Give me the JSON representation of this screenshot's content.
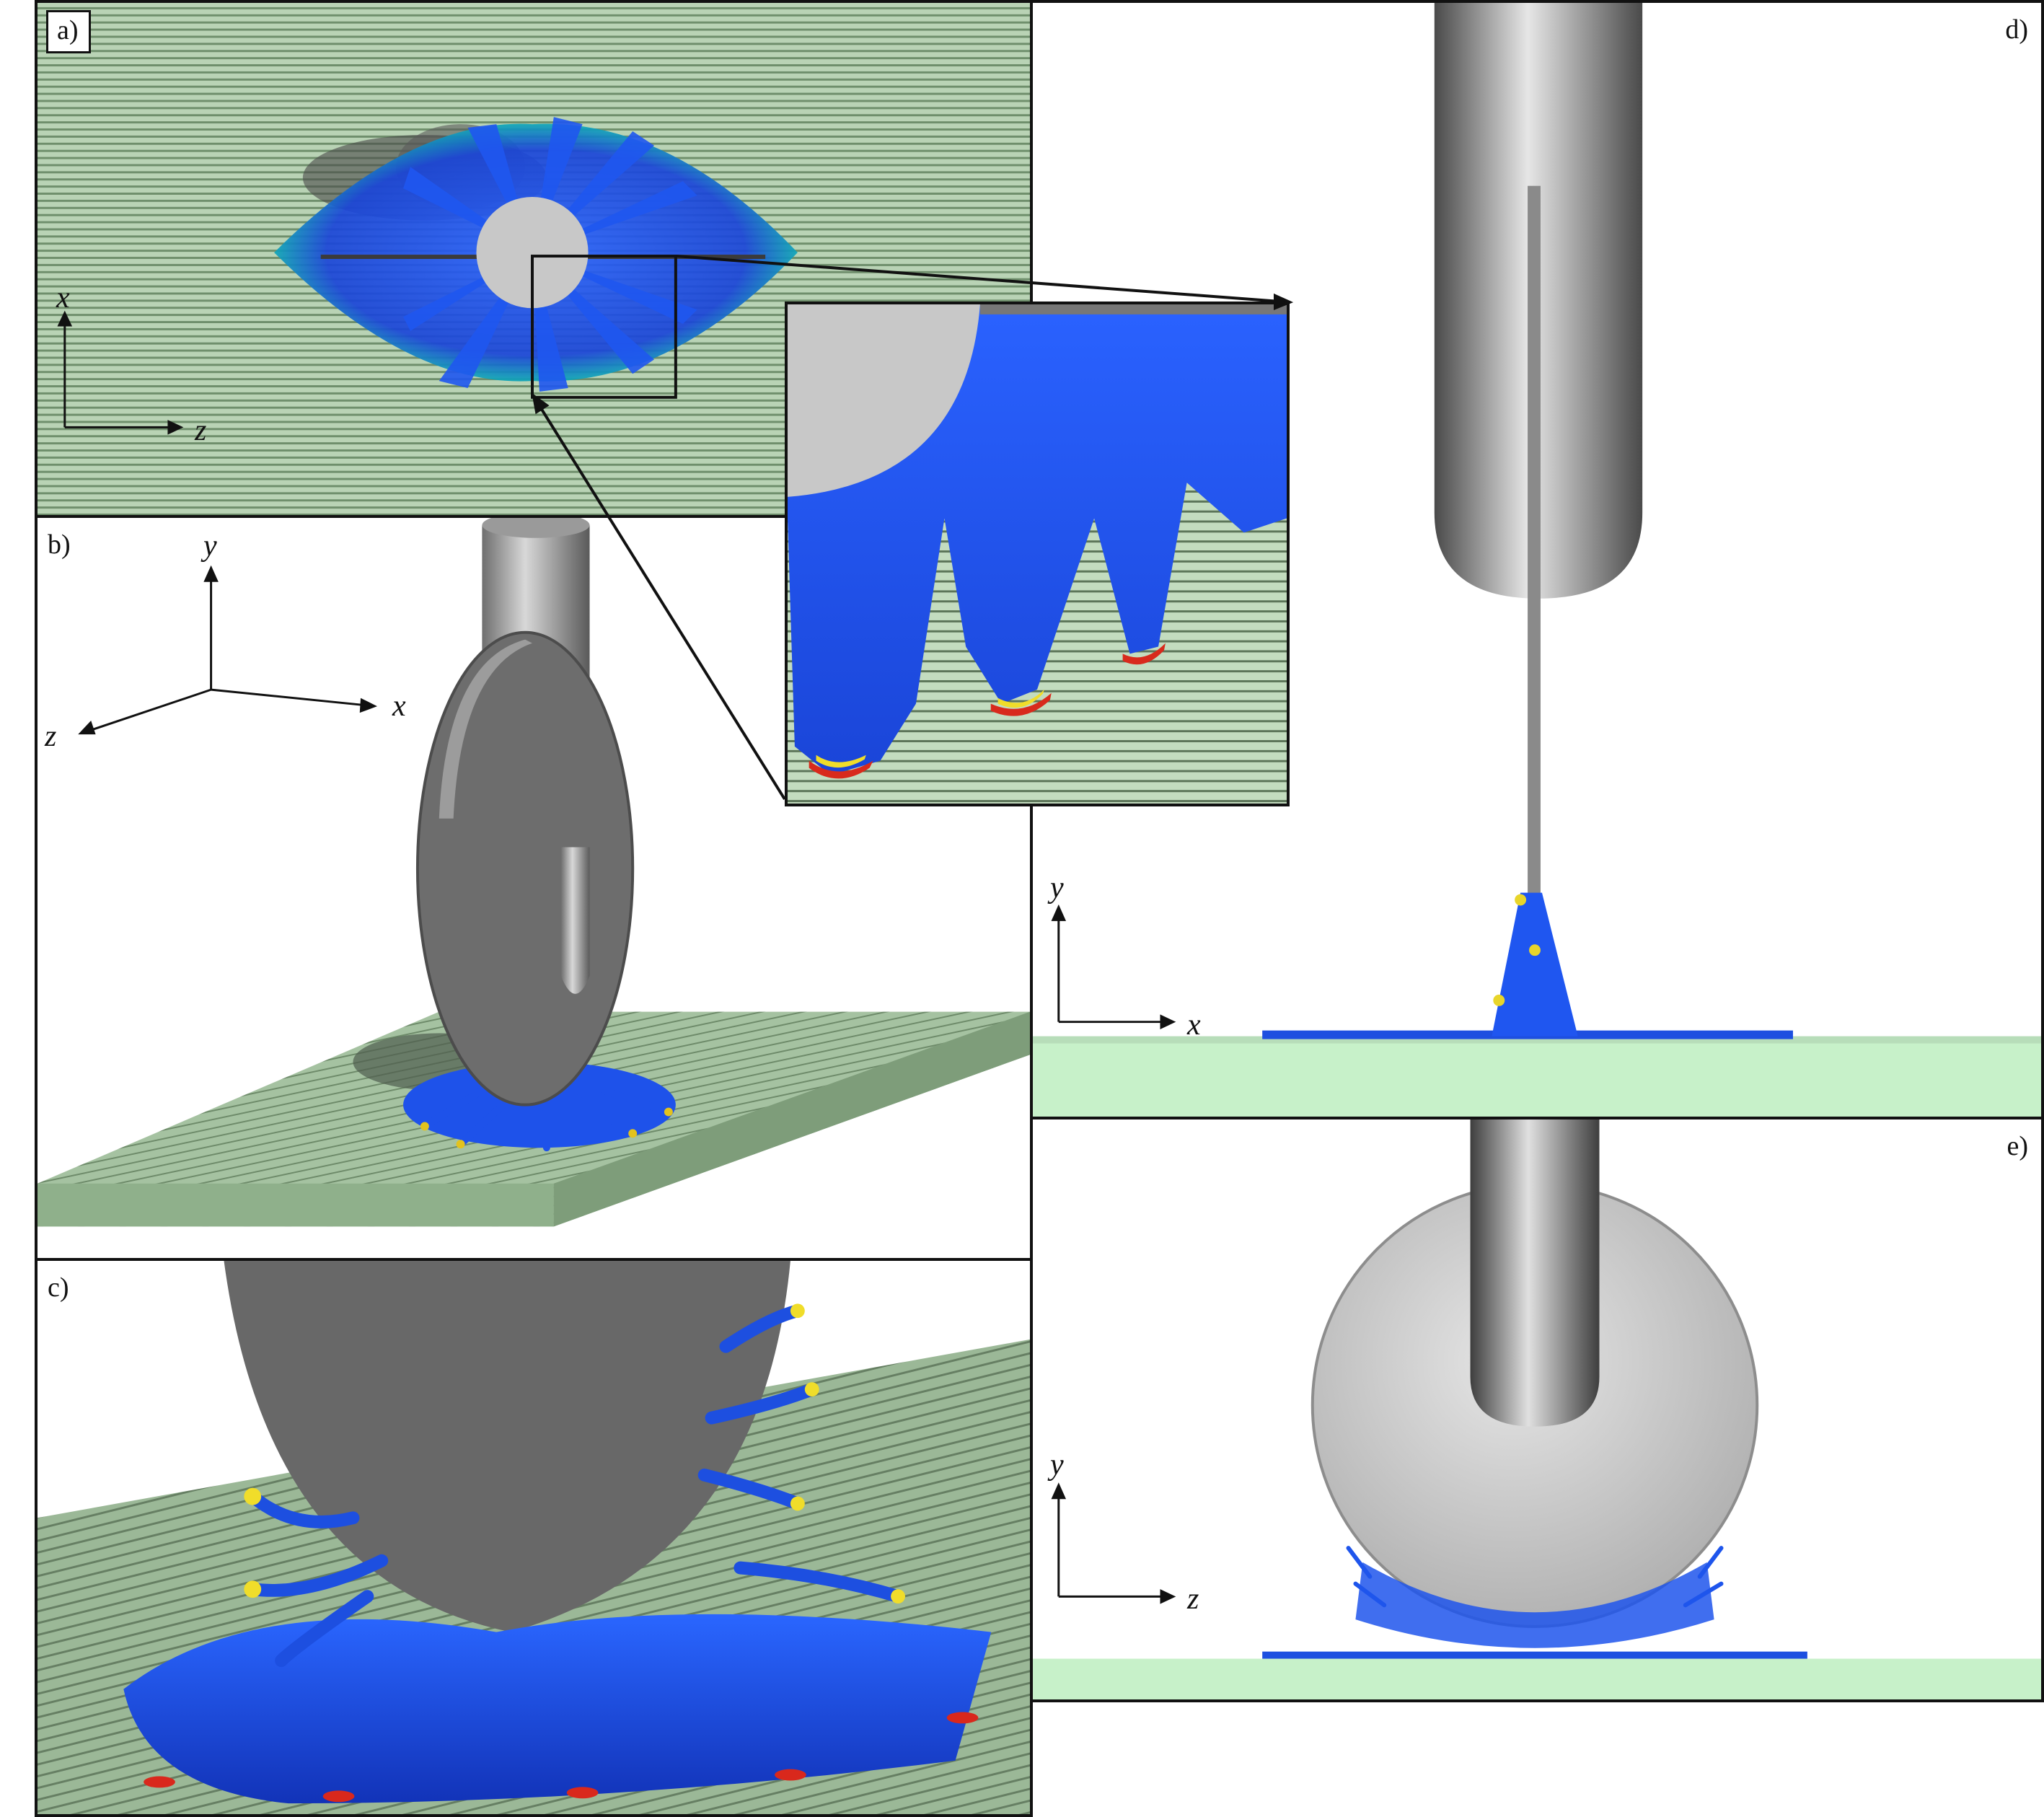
{
  "figure": {
    "panels": [
      {
        "id": "a",
        "label": "a)"
      },
      {
        "id": "b",
        "label": "b)"
      },
      {
        "id": "c",
        "label": "c)"
      },
      {
        "id": "d",
        "label": "d)"
      },
      {
        "id": "e",
        "label": "e)"
      }
    ]
  },
  "axes": {
    "a": {
      "vertical": "x",
      "horizontal": "z"
    },
    "b": {
      "vertical": "y",
      "right": "x",
      "left": "z"
    },
    "d": {
      "vertical": "y",
      "horizontal": "x"
    },
    "e": {
      "vertical": "y",
      "horizontal": "z"
    }
  },
  "colors": {
    "substrate_green": "#a8c6a4",
    "substrate_light": "#c7f1c9",
    "disk_gray": "#6b6b6b",
    "disk_light": "#c9c9c9",
    "liquid_blue": "#1d4fe0",
    "liquid_tip_red": "#d8261b",
    "liquid_tip_yellow": "#f2e02a",
    "frame": "#111111"
  }
}
